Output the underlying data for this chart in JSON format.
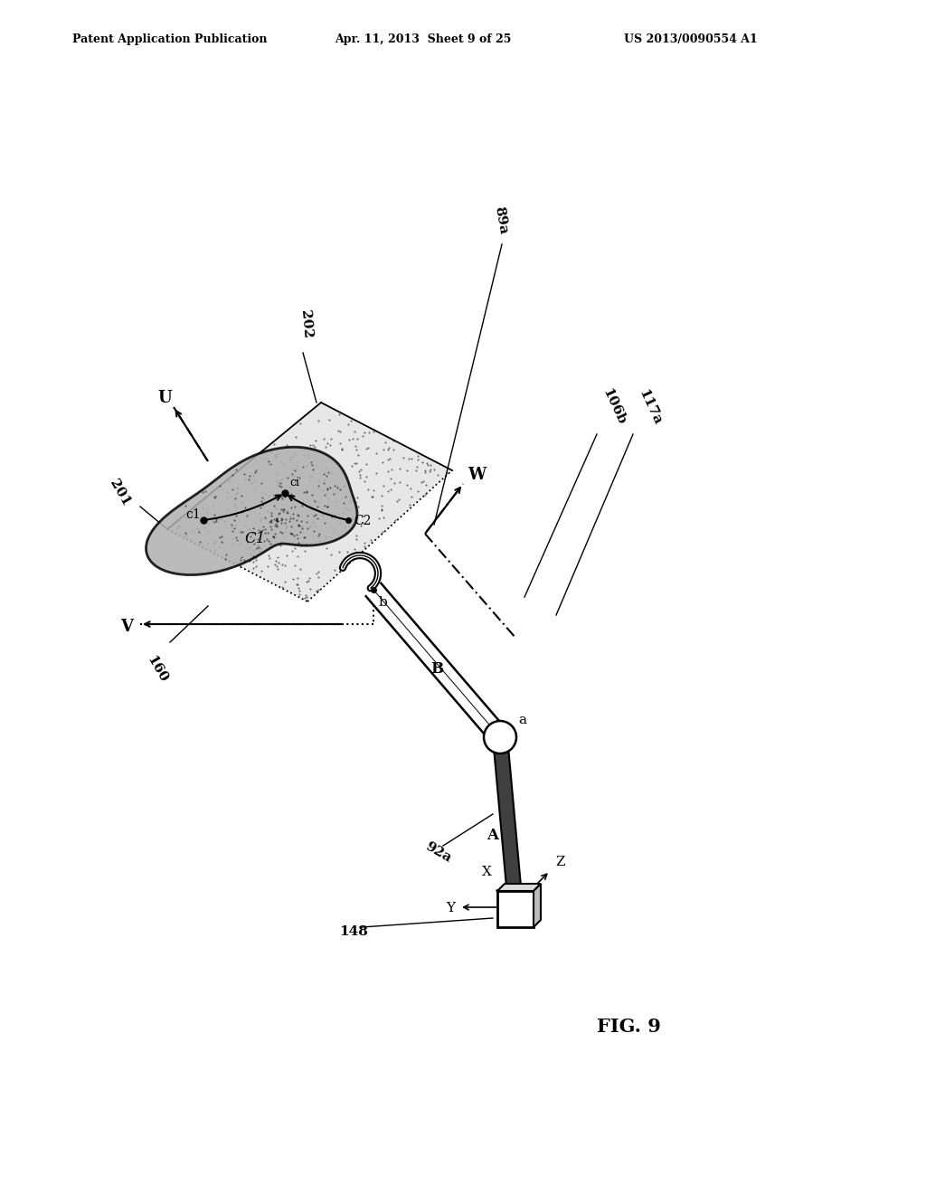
{
  "bg_color": "#ffffff",
  "header_left": "Patent Application Publication",
  "header_center": "Apr. 11, 2013  Sheet 9 of 25",
  "header_right": "US 2013/0090554 A1",
  "fig_label": "FIG. 9",
  "plane_fill": "#d0d0d0",
  "plane_alpha": 0.5,
  "organ_fill": "#a8a8a8",
  "organ_alpha": 0.85,
  "line_color": "#000000"
}
